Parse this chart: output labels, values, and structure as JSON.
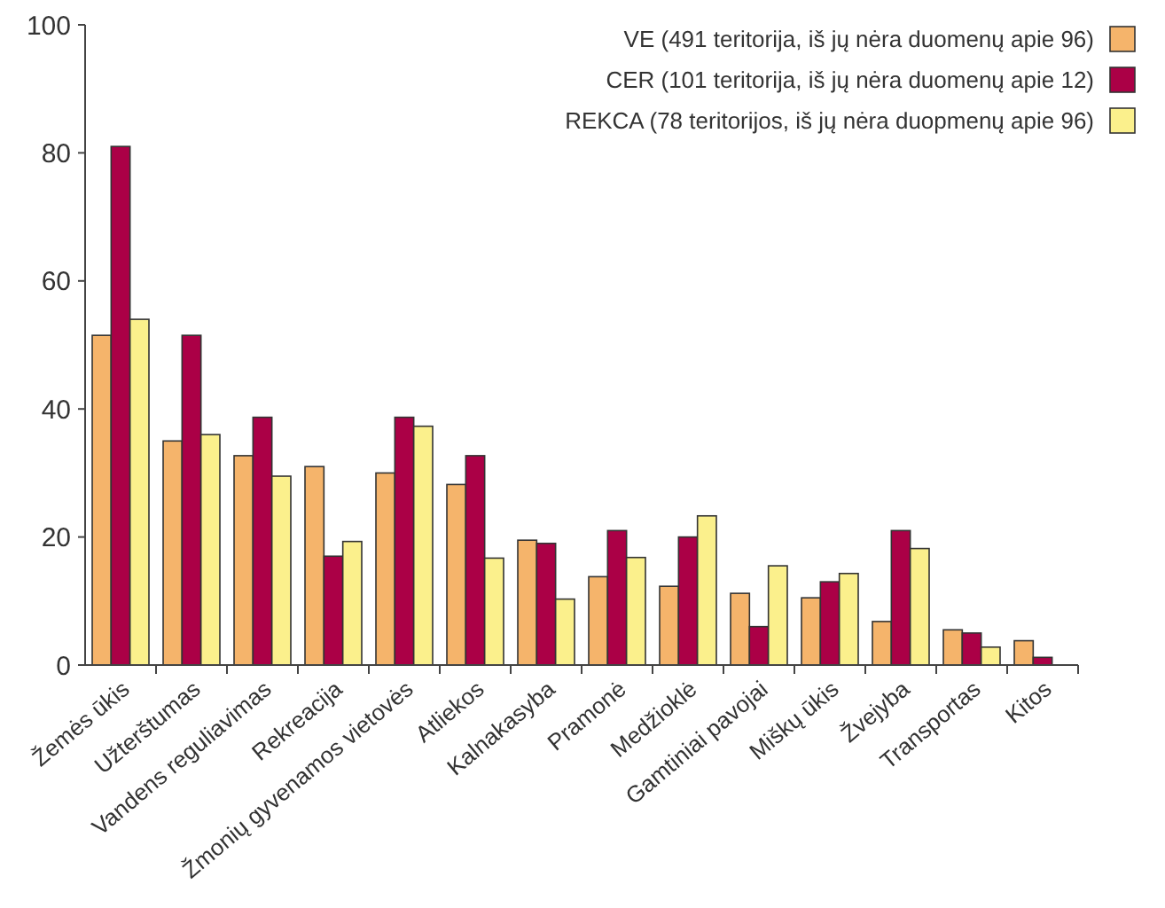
{
  "chart_data": {
    "type": "bar",
    "categories": [
      "Žemės ūkis",
      "Užterštumas",
      "Vandens reguliavimas",
      "Rekreacija",
      "Žmonių gyvenamos vietovės",
      "Atliekos",
      "Kalnakasyba",
      "Pramonė",
      "Medžioklė",
      "Gamtiniai pavojai",
      "Miškų ūkis",
      "Žvejyba",
      "Transportas",
      "Kitos"
    ],
    "series": [
      {
        "name": "VE (491 teritorija, iš jų nėra duomenų apie 96)",
        "color": "#f5b46b",
        "values": [
          51.5,
          35,
          32.7,
          31,
          30,
          28.2,
          19.5,
          13.8,
          12.3,
          11.2,
          10.5,
          6.8,
          5.5,
          3.8
        ]
      },
      {
        "name": "CER (101 teritorija, iš jų nėra duomenų apie 12)",
        "color": "#ab0046",
        "values": [
          81,
          51.5,
          38.7,
          17,
          38.7,
          32.7,
          19,
          21,
          20,
          6,
          13,
          21,
          5,
          1.2
        ]
      },
      {
        "name": "REKCA (78 teritorijos, iš jų nėra duopmenų apie 96)",
        "color": "#fbf08c",
        "values": [
          54,
          36,
          29.5,
          19.3,
          37.3,
          16.7,
          10.3,
          16.8,
          23.3,
          15.5,
          14.3,
          18.2,
          2.8,
          null
        ]
      }
    ],
    "ylim": [
      0,
      100
    ],
    "yticks": [
      0,
      20,
      40,
      60,
      80,
      100
    ],
    "grid": false,
    "legend": "top right"
  }
}
